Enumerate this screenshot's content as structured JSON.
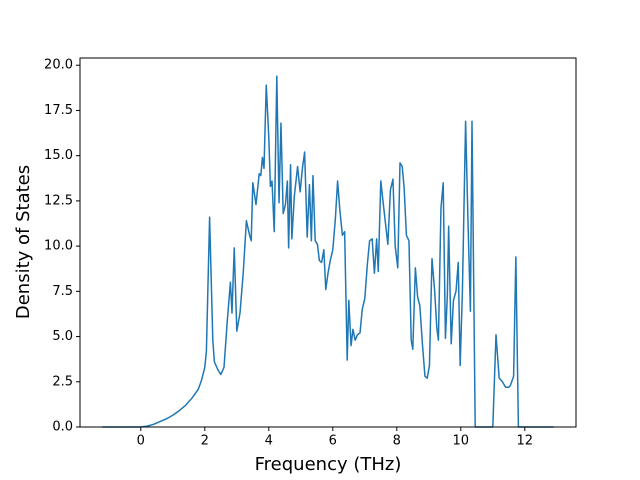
{
  "chart_data": {
    "type": "line",
    "x_label": "Frequency (THz)",
    "y_label": "Density of States",
    "x": [
      -1.2,
      -0.6,
      0,
      0.2,
      0.4,
      0.6,
      0.8,
      1.0,
      1.2,
      1.4,
      1.6,
      1.8,
      1.9,
      2.0,
      2.05,
      2.15,
      2.25,
      2.3,
      2.4,
      2.5,
      2.6,
      2.7,
      2.8,
      2.85,
      2.92,
      3.0,
      3.1,
      3.2,
      3.3,
      3.4,
      3.45,
      3.5,
      3.6,
      3.7,
      3.75,
      3.8,
      3.85,
      3.92,
      4.0,
      4.05,
      4.1,
      4.17,
      4.25,
      4.32,
      4.38,
      4.45,
      4.52,
      4.58,
      4.62,
      4.68,
      4.72,
      4.8,
      4.9,
      4.98,
      5.05,
      5.12,
      5.2,
      5.27,
      5.33,
      5.38,
      5.45,
      5.52,
      5.58,
      5.65,
      5.72,
      5.78,
      5.85,
      5.92,
      6.0,
      6.08,
      6.15,
      6.22,
      6.3,
      6.37,
      6.45,
      6.5,
      6.57,
      6.63,
      6.7,
      6.77,
      6.85,
      6.92,
      7.0,
      7.08,
      7.15,
      7.23,
      7.3,
      7.37,
      7.42,
      7.5,
      7.58,
      7.65,
      7.72,
      7.8,
      7.88,
      7.95,
      8.03,
      8.1,
      8.17,
      8.23,
      8.3,
      8.38,
      8.45,
      8.5,
      8.58,
      8.65,
      8.72,
      8.8,
      8.88,
      8.95,
      9.02,
      9.1,
      9.18,
      9.25,
      9.3,
      9.38,
      9.45,
      9.52,
      9.58,
      9.62,
      9.7,
      9.77,
      9.85,
      9.92,
      9.98,
      10.05,
      10.15,
      10.22,
      10.3,
      10.35,
      10.45,
      10.6,
      10.8,
      11.0,
      11.1,
      11.2,
      11.3,
      11.4,
      11.5,
      11.55,
      11.65,
      11.72,
      11.8,
      12.0,
      12.5,
      12.9
    ],
    "series": [
      {
        "name": "DOS",
        "color": "#1f77b4",
        "values": [
          0,
          0,
          0,
          0.05,
          0.15,
          0.3,
          0.45,
          0.65,
          0.9,
          1.2,
          1.6,
          2.1,
          2.6,
          3.3,
          4.2,
          11.6,
          4.8,
          3.6,
          3.2,
          2.9,
          3.3,
          5.8,
          8.0,
          6.3,
          9.9,
          5.3,
          6.3,
          8.5,
          11.4,
          10.6,
          10.3,
          13.5,
          12.3,
          14.0,
          13.9,
          14.9,
          14.3,
          18.9,
          16.0,
          13.3,
          13.6,
          10.8,
          19.4,
          12.4,
          16.8,
          11.8,
          12.3,
          13.6,
          9.9,
          14.5,
          10.4,
          12.8,
          14.4,
          13.0,
          14.3,
          15.2,
          10.5,
          13.4,
          10.3,
          13.9,
          10.3,
          10.1,
          9.2,
          9.1,
          9.8,
          7.6,
          8.5,
          9.2,
          9.8,
          11.5,
          13.6,
          12.0,
          10.6,
          10.8,
          3.7,
          7.0,
          4.5,
          5.4,
          4.8,
          5.1,
          5.2,
          6.5,
          7.1,
          9.0,
          10.3,
          10.4,
          8.5,
          10.4,
          8.6,
          13.6,
          12.3,
          11.2,
          10.1,
          13.1,
          13.7,
          10.0,
          8.8,
          14.6,
          14.4,
          13.2,
          10.6,
          10.3,
          4.8,
          4.3,
          8.8,
          7.2,
          6.7,
          4.6,
          2.8,
          2.7,
          3.4,
          9.3,
          7.6,
          5.5,
          4.8,
          12.1,
          13.5,
          4.9,
          7.3,
          11.1,
          4.6,
          7.0,
          7.5,
          9.1,
          3.4,
          7.5,
          16.9,
          11.7,
          6.4,
          16.9,
          0,
          0,
          0,
          0,
          5.1,
          2.7,
          2.5,
          2.2,
          2.2,
          2.3,
          2.8,
          9.4,
          0,
          0,
          0,
          0
        ]
      }
    ],
    "xlim": [
      -1.9,
      13.6
    ],
    "xticks": [
      0,
      2,
      4,
      6,
      8,
      10,
      12
    ],
    "ylim": [
      0,
      20.4
    ],
    "yticks": [
      {
        "value": 0,
        "label": "0.0"
      },
      {
        "value": 2.5,
        "label": "2.5"
      },
      {
        "value": 5,
        "label": "5.0"
      },
      {
        "value": 7.5,
        "label": "7.5"
      },
      {
        "value": 10,
        "label": "10.0"
      },
      {
        "value": 12.5,
        "label": "12.5"
      },
      {
        "value": 15,
        "label": "15.0"
      },
      {
        "value": 17.5,
        "label": "17.5"
      },
      {
        "value": 20,
        "label": "20.0"
      }
    ],
    "grid": false
  }
}
